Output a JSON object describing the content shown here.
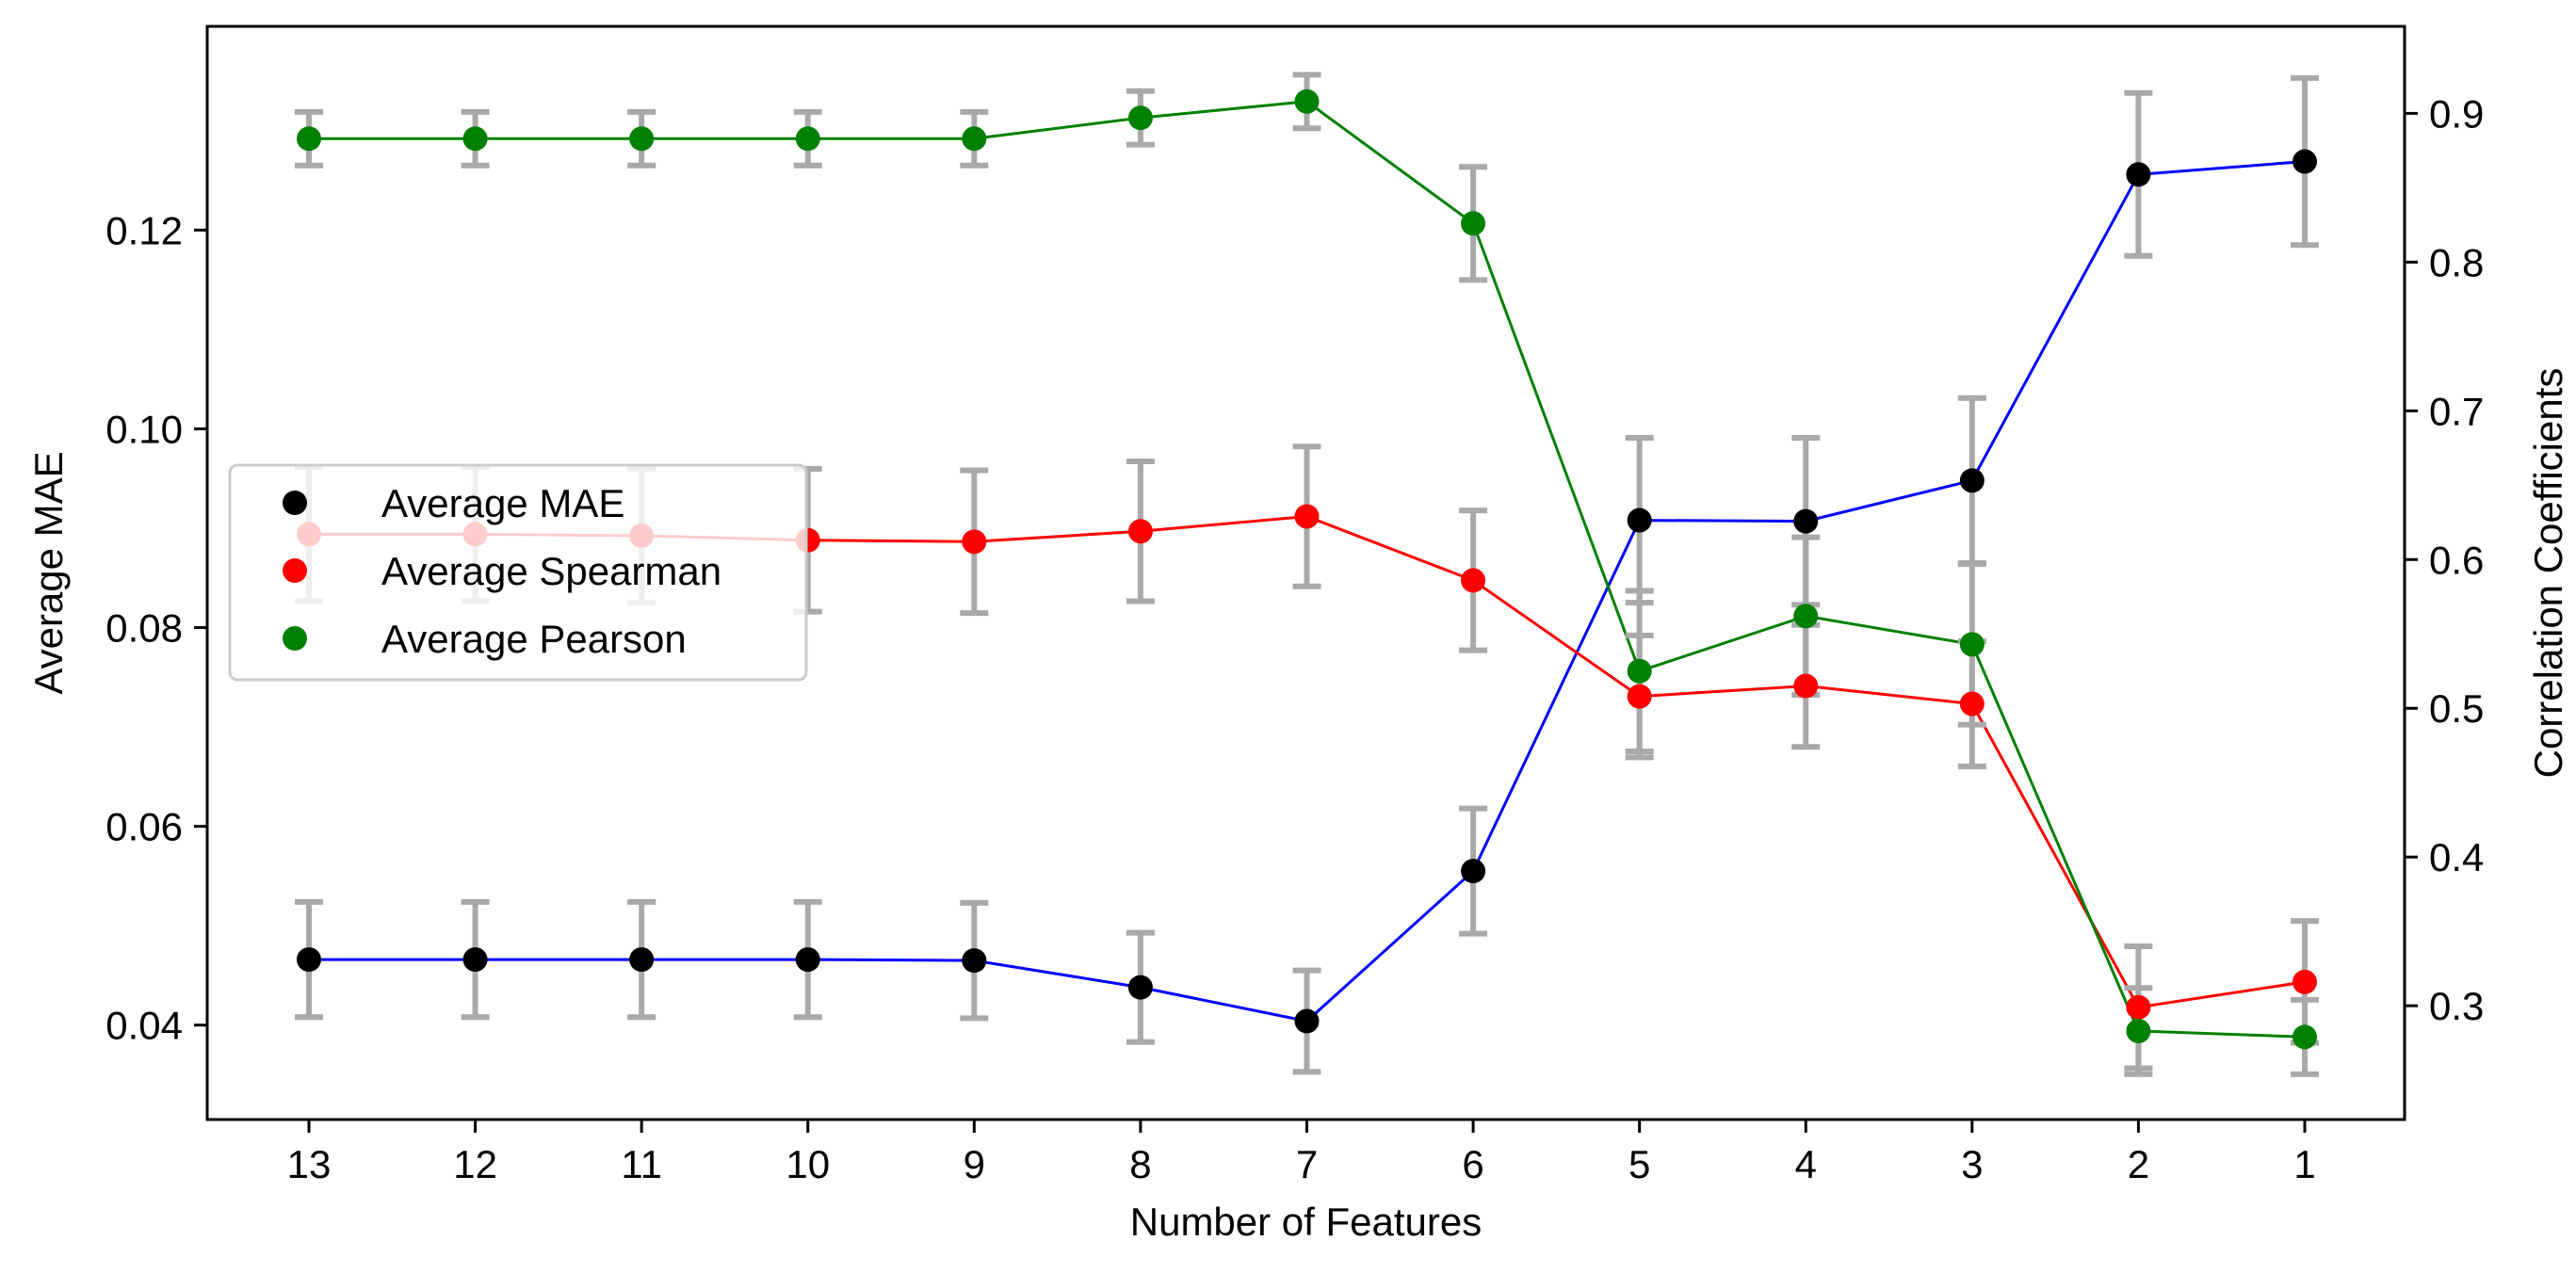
{
  "chart_data": {
    "type": "line",
    "xlabel": "Number of Features",
    "ylabel_left": "Average MAE",
    "ylabel_right": "Correlation Coefficients",
    "x": [
      13,
      12,
      11,
      10,
      9,
      8,
      7,
      6,
      5,
      4,
      3,
      2,
      1
    ],
    "x_tick_labels": [
      "13",
      "12",
      "11",
      "10",
      "9",
      "8",
      "7",
      "6",
      "5",
      "4",
      "3",
      "2",
      "1"
    ],
    "ylim_left": [
      0.0305,
      0.1405
    ],
    "ylim_right": [
      0.2235,
      0.9585
    ],
    "yticks_left": [
      0.04,
      0.06,
      0.08,
      0.1,
      0.12
    ],
    "yticks_left_labels": [
      "0.04",
      "0.06",
      "0.08",
      "0.10",
      "0.12"
    ],
    "yticks_right": [
      0.3,
      0.4,
      0.5,
      0.6,
      0.7,
      0.8,
      0.9
    ],
    "yticks_right_labels": [
      "0.3",
      "0.4",
      "0.5",
      "0.6",
      "0.7",
      "0.8",
      "0.9"
    ],
    "grid": false,
    "legend_position": "center-left",
    "series": [
      {
        "name": "Average MAE",
        "axis": "left",
        "line_color": "#0000ff",
        "marker_color": "#000000",
        "values": [
          0.0466,
          0.0466,
          0.0466,
          0.0466,
          0.0465,
          0.0438,
          0.0404,
          0.0555,
          0.0908,
          0.0907,
          0.0948,
          0.1256,
          0.1269
        ],
        "errors": [
          0.0058,
          0.0058,
          0.0058,
          0.0058,
          0.0058,
          0.0055,
          0.0051,
          0.0063,
          0.0083,
          0.0084,
          0.0083,
          0.0082,
          0.0084
        ]
      },
      {
        "name": "Average Spearman",
        "axis": "right",
        "line_color": "#ff0000",
        "marker_color": "#ff0000",
        "values": [
          0.617,
          0.617,
          0.616,
          0.613,
          0.612,
          0.619,
          0.629,
          0.586,
          0.508,
          0.515,
          0.503,
          0.299,
          0.316
        ],
        "errors": [
          0.045,
          0.045,
          0.045,
          0.048,
          0.048,
          0.047,
          0.047,
          0.047,
          0.041,
          0.041,
          0.042,
          0.041,
          0.041
        ]
      },
      {
        "name": "Average Pearson",
        "axis": "right",
        "line_color": "#008000",
        "marker_color": "#008000",
        "values": [
          0.883,
          0.883,
          0.883,
          0.883,
          0.883,
          0.897,
          0.908,
          0.826,
          0.525,
          0.562,
          0.543,
          0.283,
          0.279
        ],
        "errors": [
          0.018,
          0.018,
          0.018,
          0.018,
          0.018,
          0.018,
          0.018,
          0.038,
          0.054,
          0.053,
          0.054,
          0.029,
          0.025
        ]
      }
    ],
    "error_bar_color": "#a9a9a9"
  }
}
